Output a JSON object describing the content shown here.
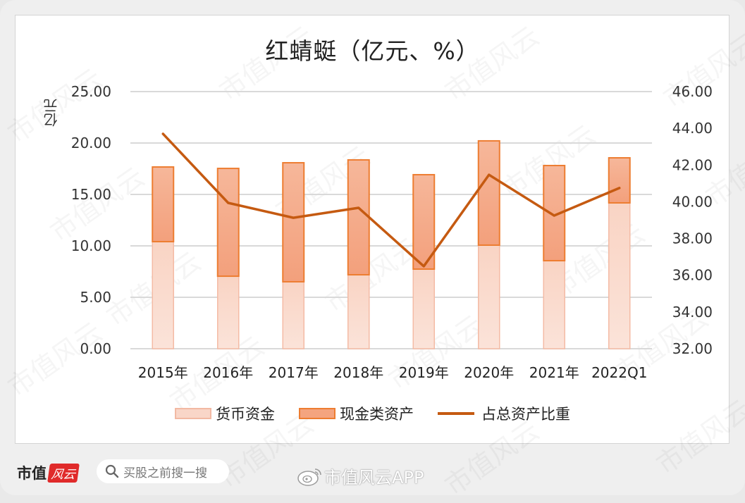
{
  "chart_data": {
    "type": "bar",
    "subtype": "stacked bar + line (dual axis)",
    "title": "红蜻蜓（亿元、%）",
    "categories": [
      "2015年",
      "2016年",
      "2017年",
      "2018年",
      "2019年",
      "2020年",
      "2021年",
      "2022Q1"
    ],
    "series": [
      {
        "name": "货币资金",
        "type": "bar",
        "axis": "left",
        "stack": "total",
        "color": "#f9d6c8",
        "values": [
          10.41,
          7.05,
          6.51,
          7.19,
          7.74,
          10.07,
          8.56,
          14.18
        ]
      },
      {
        "name": "现金类资产",
        "type": "bar",
        "axis": "left",
        "stack": "total",
        "color": "#f4a47f",
        "border": "#ed7d31",
        "values": [
          7.26,
          10.48,
          11.57,
          11.17,
          9.18,
          10.14,
          9.25,
          4.38
        ]
      },
      {
        "name": "占总资产比重",
        "type": "line",
        "axis": "right",
        "color": "#c55a11",
        "values": [
          43.7,
          39.94,
          39.13,
          39.67,
          36.49,
          41.47,
          39.25,
          40.75
        ]
      }
    ],
    "stack_totals": [
      17.67,
      17.53,
      18.08,
      18.36,
      16.92,
      20.21,
      17.81,
      18.56
    ],
    "xlabel": "",
    "ylabel": "亿元",
    "ylim": [
      0,
      25
    ],
    "yticks": [
      "0.00",
      "5.00",
      "10.00",
      "15.00",
      "20.00",
      "25.00"
    ],
    "y2lim": [
      32,
      46
    ],
    "y2ticks": [
      "32.00",
      "34.00",
      "36.00",
      "38.00",
      "40.00",
      "42.00",
      "44.00",
      "46.00"
    ],
    "grid": true,
    "legend_position": "bottom"
  },
  "title": "红蜻蜓（亿元、%）",
  "axis_unit": "亿元",
  "legend": [
    {
      "label": "货币资金"
    },
    {
      "label": "现金类资产"
    },
    {
      "label": "占总资产比重"
    }
  ],
  "footer": {
    "brand_text": "市值",
    "brand_badge": "风云",
    "search_placeholder": "买股之前搜一搜",
    "weibo_handle": "市值风云APP"
  },
  "watermark_text": "市值风云"
}
